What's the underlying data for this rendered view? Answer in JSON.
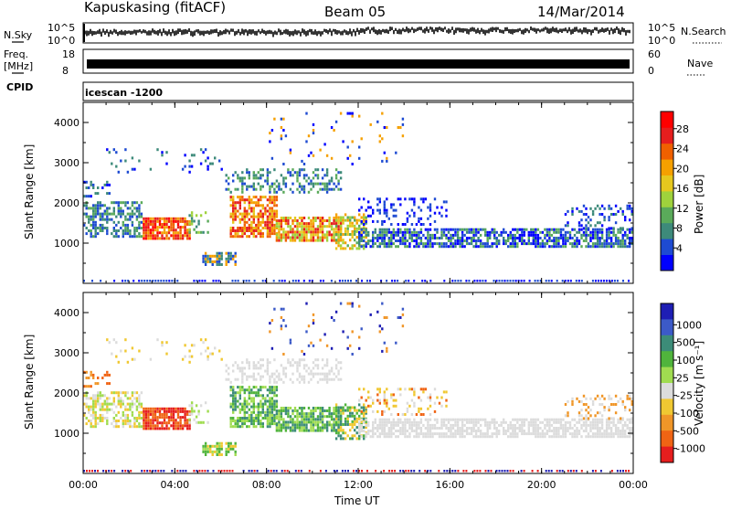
{
  "header": {
    "station": "Kapuskasing (fitACF)",
    "beam": "Beam 05",
    "date": "14/Mar/2014"
  },
  "strips": {
    "left_nsky": "N.Sky",
    "left_freq_line1": "Freq.",
    "left_freq_line2": "[MHz]",
    "left_cpid": "CPID",
    "right_nsearch": "N.Search",
    "right_nave": "Nave",
    "nsky_ticks": [
      "10^5",
      "10^0"
    ],
    "nsearch_ticks": [
      "10^5",
      "10^0"
    ],
    "freq_ticks": [
      "18",
      "8"
    ],
    "nave_ticks": [
      "60",
      "0"
    ],
    "cpid_label": "icescan -1200"
  },
  "chart_data": [
    {
      "type": "heatmap",
      "name": "power",
      "ylabel": "Slant Range [km]",
      "xlabel": "",
      "xlim": [
        0,
        24
      ],
      "ylim": [
        0,
        4500
      ],
      "x_ticks": [
        "00:00",
        "04:00",
        "08:00",
        "12:00",
        "16:00",
        "20:00",
        "00:00"
      ],
      "y_ticks": [
        1000,
        2000,
        3000,
        4000
      ],
      "colorbar": {
        "label": "Power [dB]",
        "ticks": [
          "4",
          "8",
          "12",
          "16",
          "20",
          "24",
          "28"
        ],
        "colors": [
          "#0000ff",
          "#1e4bd2",
          "#3d8a7a",
          "#5aaa5a",
          "#9fd23c",
          "#e6c81e",
          "#f5a000",
          "#f06000",
          "#e61e1e",
          "#ff0000"
        ]
      }
    },
    {
      "type": "heatmap",
      "name": "velocity",
      "ylabel": "Slant Range [km]",
      "xlabel": "Time UT",
      "xlim": [
        0,
        24
      ],
      "ylim": [
        0,
        4500
      ],
      "x_ticks": [
        "00:00",
        "04:00",
        "08:00",
        "12:00",
        "16:00",
        "20:00",
        "00:00"
      ],
      "y_ticks": [
        1000,
        2000,
        3000,
        4000
      ],
      "colorbar": {
        "label": "Velocity [m s⁻¹]",
        "ticks": [
          "1000",
          "500",
          "100",
          "25",
          "-25",
          "-100",
          "-500",
          "-1000"
        ],
        "colors": [
          "#1e1eb4",
          "#3c5ac8",
          "#3c8c78",
          "#50b43c",
          "#a0dc50",
          "#dcdcdc",
          "#f0c832",
          "#f09628",
          "#f06414",
          "#e61e1e"
        ]
      }
    }
  ]
}
